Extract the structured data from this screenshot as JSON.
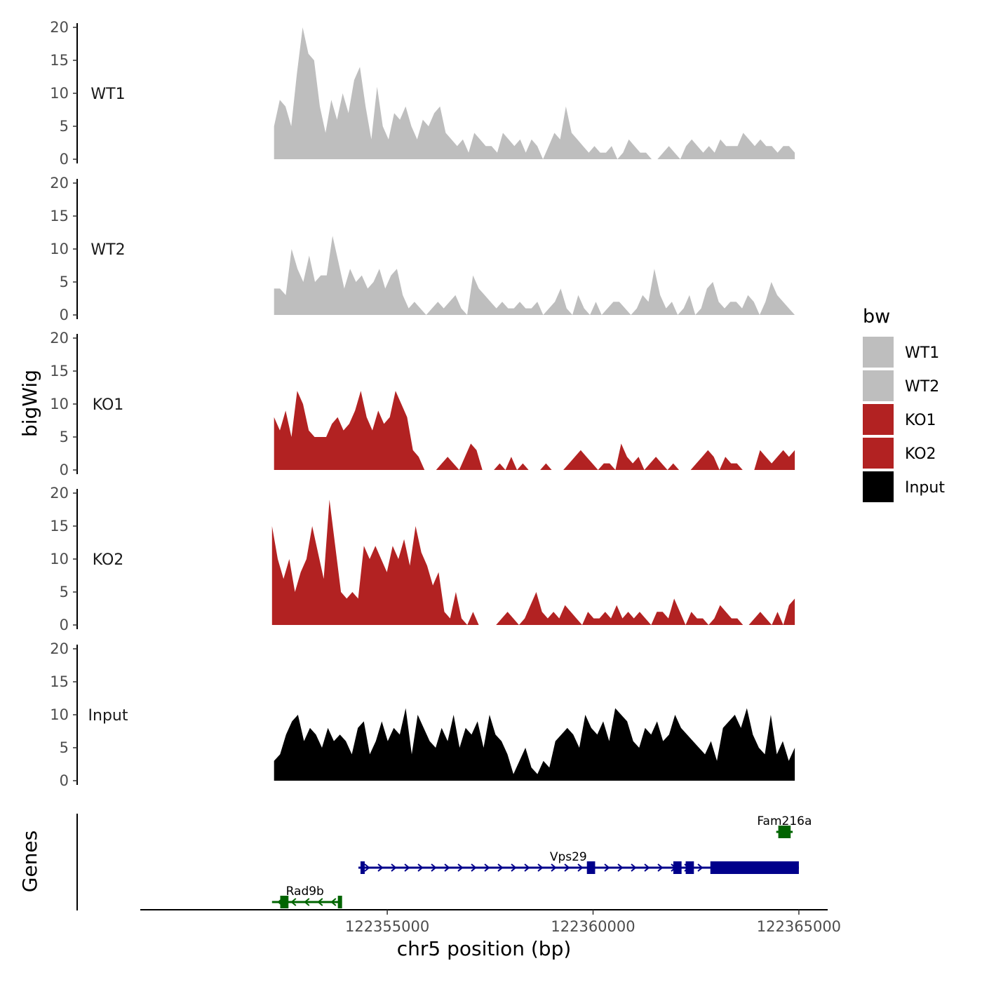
{
  "chart_data": {
    "type": "area",
    "title": "",
    "ylabel": "bigWig",
    "xlabel": "chr5 position (bp)",
    "genes_label": "Genes",
    "ylim": [
      0,
      20
    ],
    "yticks": [
      "0",
      "5",
      "10",
      "15",
      "20"
    ],
    "xlim": [
      122349000,
      122365700
    ],
    "xticks": [
      {
        "value": 122355000,
        "label": "122355000"
      },
      {
        "value": 122360000,
        "label": "122360000"
      },
      {
        "value": 122365000,
        "label": "122365000"
      }
    ],
    "legend": {
      "title": "bw",
      "entries": [
        {
          "label": "WT1",
          "color": "#bebebe"
        },
        {
          "label": "WT2",
          "color": "#bebebe"
        },
        {
          "label": "KO1",
          "color": "#b22222"
        },
        {
          "label": "KO2",
          "color": "#b22222"
        },
        {
          "label": "Input",
          "color": "#000000"
        }
      ]
    },
    "series": [
      {
        "name": "WT1",
        "color": "#bebebe",
        "x_start": 122352250,
        "x_end": 122364900,
        "values": [
          5,
          9,
          8,
          5,
          13,
          20,
          16,
          15,
          8,
          4,
          9,
          6,
          10,
          7,
          12,
          14,
          8,
          3,
          11,
          5,
          3,
          7,
          6,
          8,
          5,
          3,
          6,
          5,
          7,
          8,
          4,
          3,
          2,
          3,
          1,
          4,
          3,
          2,
          2,
          1,
          4,
          3,
          2,
          3,
          1,
          3,
          2,
          0,
          2,
          4,
          3,
          8,
          4,
          3,
          2,
          1,
          2,
          1,
          1,
          2,
          0,
          1,
          3,
          2,
          1,
          1,
          0,
          0,
          1,
          2,
          1,
          0,
          2,
          3,
          2,
          1,
          2,
          1,
          3,
          2,
          2,
          2,
          4,
          3,
          2,
          3,
          2,
          2,
          1,
          2,
          2,
          1
        ]
      },
      {
        "name": "WT2",
        "color": "#bebebe",
        "x_start": 122352250,
        "x_end": 122364900,
        "values": [
          4,
          4,
          3,
          10,
          7,
          5,
          9,
          5,
          6,
          6,
          12,
          8,
          4,
          7,
          5,
          6,
          4,
          5,
          7,
          4,
          6,
          7,
          3,
          1,
          2,
          1,
          0,
          1,
          2,
          1,
          2,
          3,
          1,
          0,
          6,
          4,
          3,
          2,
          1,
          2,
          1,
          1,
          2,
          1,
          1,
          2,
          0,
          1,
          2,
          4,
          1,
          0,
          3,
          1,
          0,
          2,
          0,
          1,
          2,
          2,
          1,
          0,
          1,
          3,
          2,
          7,
          3,
          1,
          2,
          0,
          1,
          3,
          0,
          1,
          4,
          5,
          2,
          1,
          2,
          2,
          1,
          3,
          2,
          0,
          2,
          5,
          3,
          2,
          1,
          0
        ]
      },
      {
        "name": "KO1",
        "color": "#b22222",
        "x_start": 122352250,
        "x_end": 122364900,
        "values": [
          8,
          6,
          9,
          5,
          12,
          10,
          6,
          5,
          5,
          5,
          7,
          8,
          6,
          7,
          9,
          12,
          8,
          6,
          9,
          7,
          8,
          12,
          10,
          8,
          3,
          2,
          0,
          0,
          0,
          1,
          2,
          1,
          0,
          2,
          4,
          3,
          0,
          0,
          0,
          1,
          0,
          2,
          0,
          1,
          0,
          0,
          0,
          1,
          0,
          0,
          0,
          1,
          2,
          3,
          2,
          1,
          0,
          1,
          1,
          0,
          4,
          2,
          1,
          2,
          0,
          1,
          2,
          1,
          0,
          1,
          0,
          0,
          0,
          1,
          2,
          3,
          2,
          0,
          2,
          1,
          1,
          0,
          0,
          0,
          3,
          2,
          1,
          2,
          3,
          2,
          3
        ]
      },
      {
        "name": "KO2",
        "color": "#b22222",
        "x_start": 122352200,
        "x_end": 122364900,
        "values": [
          15,
          10,
          7,
          10,
          5,
          8,
          10,
          15,
          11,
          7,
          19,
          12,
          5,
          4,
          5,
          4,
          12,
          10,
          12,
          10,
          8,
          12,
          10,
          13,
          9,
          15,
          11,
          9,
          6,
          8,
          2,
          1,
          5,
          1,
          0,
          2,
          0,
          0,
          0,
          0,
          1,
          2,
          1,
          0,
          1,
          3,
          5,
          2,
          1,
          2,
          1,
          3,
          2,
          1,
          0,
          2,
          1,
          1,
          2,
          1,
          3,
          1,
          2,
          1,
          2,
          1,
          0,
          2,
          2,
          1,
          4,
          2,
          0,
          2,
          1,
          1,
          0,
          1,
          3,
          2,
          1,
          1,
          0,
          0,
          1,
          2,
          1,
          0,
          2,
          0,
          3,
          4
        ]
      },
      {
        "name": "Input",
        "color": "#000000",
        "x_start": 122352250,
        "x_end": 122364900,
        "values": [
          3,
          4,
          7,
          9,
          10,
          6,
          8,
          7,
          5,
          8,
          6,
          7,
          6,
          4,
          8,
          9,
          4,
          6,
          9,
          6,
          8,
          7,
          11,
          4,
          10,
          8,
          6,
          5,
          8,
          6,
          10,
          5,
          8,
          7,
          9,
          5,
          10,
          7,
          6,
          4,
          1,
          3,
          5,
          2,
          1,
          3,
          2,
          6,
          7,
          8,
          7,
          5,
          10,
          8,
          7,
          9,
          6,
          11,
          10,
          9,
          6,
          5,
          8,
          7,
          9,
          6,
          7,
          10,
          8,
          7,
          6,
          5,
          4,
          6,
          3,
          8,
          9,
          10,
          8,
          11,
          7,
          5,
          4,
          10,
          4,
          6,
          3,
          5
        ]
      }
    ],
    "genes": [
      {
        "name": "Rad9b",
        "strand": "-",
        "color": "#006400",
        "start": 122352200,
        "end": 122353900,
        "exons": [
          [
            122352400,
            122352600
          ],
          [
            122353800,
            122353900
          ]
        ],
        "label_x": 122353000
      },
      {
        "name": "Vps29",
        "strand": "+",
        "color": "#00008b",
        "start": 122354300,
        "end": 122365000,
        "exons": [
          [
            122354350,
            122354450
          ],
          [
            122359850,
            122360050
          ],
          [
            122361950,
            122362150
          ],
          [
            122362250,
            122362450
          ],
          [
            122362850,
            122365000
          ]
        ],
        "label_x": 122359400
      },
      {
        "name": "Fam216a",
        "strand": "+",
        "color": "#006400",
        "start": 122364450,
        "end": 122364850,
        "exons": [
          [
            122364500,
            122364800
          ]
        ],
        "label_x": 122364650
      }
    ]
  }
}
